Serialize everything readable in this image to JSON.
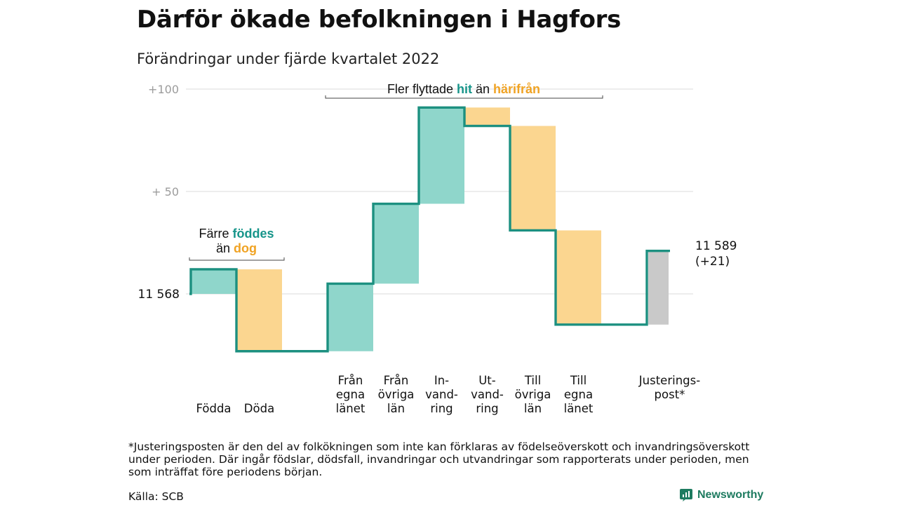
{
  "title": "Därför ökade befolkningen i Hagfors",
  "subtitle": "Förändringar under fjärde kvartalet 2022",
  "chart_data": {
    "type": "waterfall",
    "start_value": 11568,
    "start_label": "11 568",
    "end_label": [
      "11 589",
      "(+21)"
    ],
    "ylim": [
      -30,
      100
    ],
    "yticks": [
      {
        "value": 100,
        "label": "+100"
      },
      {
        "value": 50,
        "label": "+ 50"
      }
    ],
    "grid_values": [
      100,
      50,
      0
    ],
    "steps": [
      {
        "label": [
          "",
          "",
          "Födda"
        ],
        "change": 12,
        "kind": "in"
      },
      {
        "label": [
          "",
          "",
          "Döda"
        ],
        "change": -40,
        "kind": "out"
      },
      {
        "label": [
          "",
          "",
          ""
        ],
        "change": 0,
        "kind": "none"
      },
      {
        "label": [
          "Från",
          "egna",
          "länet"
        ],
        "change": 33,
        "kind": "in"
      },
      {
        "label": [
          "Från",
          "övriga",
          "län"
        ],
        "change": 39,
        "kind": "in"
      },
      {
        "label": [
          "In-",
          "vand-",
          "ring"
        ],
        "change": 47,
        "kind": "in"
      },
      {
        "label": [
          "Ut-",
          "vand-",
          "ring"
        ],
        "change": -9,
        "kind": "out"
      },
      {
        "label": [
          "Till",
          "övriga",
          "län"
        ],
        "change": -51,
        "kind": "out"
      },
      {
        "label": [
          "Till",
          "egna",
          "länet"
        ],
        "change": -46,
        "kind": "out"
      },
      {
        "label": [
          "",
          "",
          ""
        ],
        "change": 0,
        "kind": "none"
      },
      {
        "label": [
          "Justerings-",
          "post*",
          ""
        ],
        "change": 36,
        "kind": "adjustment"
      }
    ],
    "annotations": {
      "births": {
        "line1": "Färre",
        "hl1": "föddes",
        "line2": "än",
        "hl2": "dog"
      },
      "migration": {
        "pre": "Fler flyttade",
        "hl1": "hit",
        "mid": "än",
        "hl2": "härifrån"
      }
    }
  },
  "colors": {
    "line": "#1c9080",
    "in_fill": "#8fd6cb",
    "out_fill": "#fbd690",
    "adj_fill": "#c9c9c9",
    "hl_in": "#17958a",
    "hl_out": "#f0a324",
    "grid": "#e2e2e2",
    "tick": "#9c9c9c"
  },
  "footnote": "*Justeringsposten är den del av folkökningen som inte kan förklaras av födelseöverskott och invandringsöverskott under perioden. Där ingår födslar, dödsfall, invandringar och utvandringar som rapporterats under perioden, men som inträffat före periodens början.",
  "source": "Källa: SCB",
  "brand": "Newsworthy"
}
